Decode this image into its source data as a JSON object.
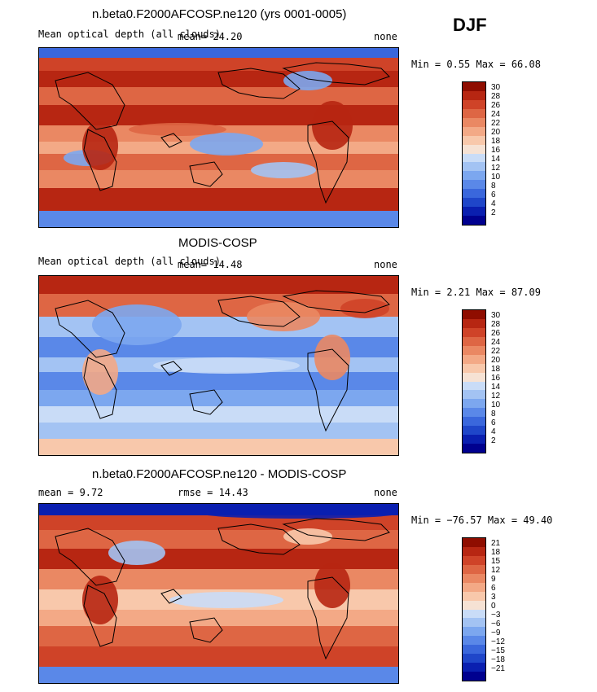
{
  "season": "DJF",
  "panels": [
    {
      "title": "n.beta0.F2000AFCOSP.ne120 (yrs 0001-0005)",
      "left_label": "Mean optical depth (all clouds)",
      "mean_text": "mean=   24.20",
      "right_label": "none",
      "minmax": "Min =    0.55 Max =   66.08",
      "colorbar_labels": [
        "30",
        "28",
        "26",
        "24",
        "22",
        "20",
        "18",
        "16",
        "14",
        "12",
        "10",
        "8",
        "6",
        "4",
        "2"
      ],
      "style": "model"
    },
    {
      "title": "MODIS-COSP",
      "left_label": "Mean optical depth (all clouds)",
      "mean_text": "mean=   14.48",
      "right_label": "none",
      "minmax": "Min =    2.21 Max =   87.09",
      "colorbar_labels": [
        "30",
        "28",
        "26",
        "24",
        "22",
        "20",
        "18",
        "16",
        "14",
        "12",
        "10",
        "8",
        "6",
        "4",
        "2"
      ],
      "style": "obs"
    },
    {
      "title": "n.beta0.F2000AFCOSP.ne120 - MODIS-COSP",
      "left_label": "mean =    9.72",
      "mean_text": "rmse =   14.43",
      "right_label": "none",
      "minmax": "Min = −76.57 Max =   49.40",
      "colorbar_labels": [
        "21",
        "18",
        "15",
        "12",
        "9",
        "6",
        "3",
        "0",
        "−3",
        "−6",
        "−9",
        "−12",
        "−15",
        "−18",
        "−21"
      ],
      "style": "diff"
    }
  ],
  "colors": {
    "palette": [
      "#00008f",
      "#0a1fb0",
      "#1f46c9",
      "#3a67dc",
      "#5a88e8",
      "#7ca7ef",
      "#a3c3f3",
      "#c9dcf7",
      "#f6e2d4",
      "#f8c8ab",
      "#f3a986",
      "#ea8863",
      "#de6644",
      "#cf4328",
      "#b72612",
      "#8f0d00"
    ]
  }
}
